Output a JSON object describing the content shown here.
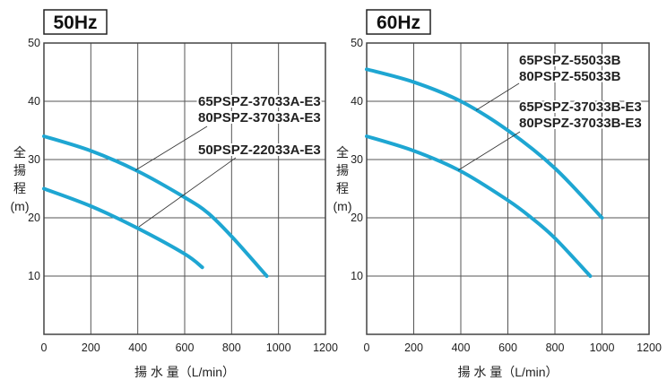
{
  "chart_data": [
    {
      "type": "line",
      "title": "50Hz",
      "xlabel": "揚 水 量（L/min）",
      "ylabel": [
        "全",
        "揚",
        "程",
        "(m)"
      ],
      "xlim": [
        0,
        1200
      ],
      "ylim": [
        0,
        50
      ],
      "xticks": [
        "0",
        "200",
        "400",
        "600",
        "800",
        "1000",
        "1200"
      ],
      "yticks": [
        "10",
        "20",
        "30",
        "40",
        "50"
      ],
      "grid": true,
      "color": "#1ea6d2",
      "series": [
        {
          "name": "65PSPZ-37033A-E3 / 80PSPZ-37033A-E3",
          "labels": [
            "65PSPZ-37033A-E3",
            "80PSPZ-37033A-E3"
          ],
          "x": [
            0,
            200,
            400,
            600,
            700,
            800,
            950
          ],
          "y": [
            34,
            31.5,
            28,
            23.5,
            20.8,
            16.8,
            10
          ]
        },
        {
          "name": "50PSPZ-22033A-E3",
          "labels": [
            "50PSPZ-22033A-E3"
          ],
          "x": [
            0,
            200,
            400,
            600,
            675
          ],
          "y": [
            25,
            22,
            18.2,
            13.8,
            11.5
          ]
        }
      ]
    },
    {
      "type": "line",
      "title": "60Hz",
      "xlabel": "揚 水 量（L/min）",
      "ylabel": [
        "全",
        "揚",
        "程",
        "(m)"
      ],
      "xlim": [
        0,
        1200
      ],
      "ylim": [
        0,
        50
      ],
      "xticks": [
        "0",
        "200",
        "400",
        "600",
        "800",
        "1000",
        "1200"
      ],
      "yticks": [
        "10",
        "20",
        "30",
        "40",
        "50"
      ],
      "grid": true,
      "color": "#1ea6d2",
      "series": [
        {
          "name": "65PSPZ-55033B / 80PSPZ-55033B",
          "labels": [
            "65PSPZ-55033B",
            "80PSPZ-55033B"
          ],
          "x": [
            0,
            200,
            400,
            600,
            800,
            1000
          ],
          "y": [
            45.5,
            43.3,
            40,
            35,
            28.5,
            20
          ]
        },
        {
          "name": "65PSPZ-37033B-E3 / 80PSPZ-37033B-E3",
          "labels": [
            "65PSPZ-37033B-E3",
            "80PSPZ-37033B-E3"
          ],
          "x": [
            0,
            200,
            400,
            600,
            700,
            800,
            950
          ],
          "y": [
            34,
            31.5,
            28,
            23,
            20,
            16.5,
            10
          ]
        }
      ]
    }
  ]
}
